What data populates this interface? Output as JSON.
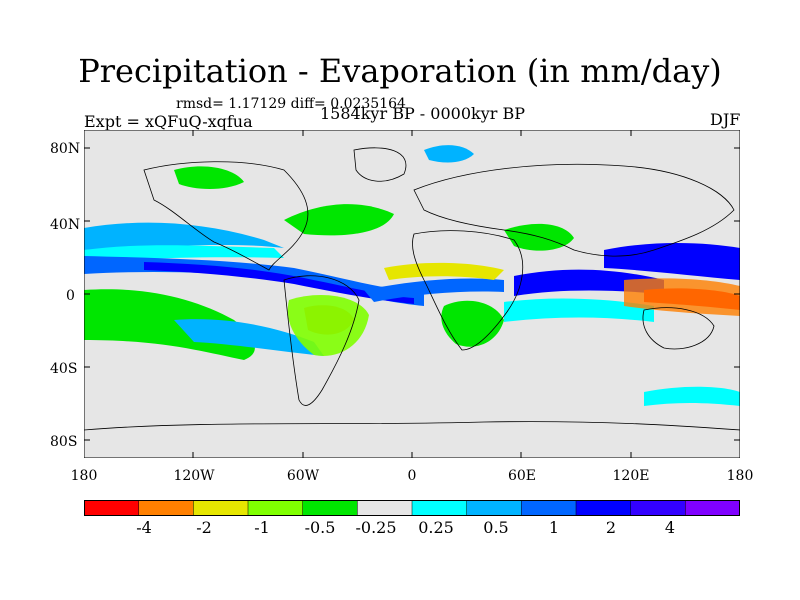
{
  "title": "Precipitation - Evaporation (in mm/day)",
  "stats": "rmsd= 1.17129 diff= 0.0235164",
  "experiment": "Expt = xQFuQ-xqfua",
  "period": "1584kyr BP - 0000kyr BP",
  "season": "DJF",
  "lat_labels": [
    "80N",
    "40N",
    "0",
    "40S",
    "80S"
  ],
  "lon_labels": [
    "180",
    "120W",
    "60W",
    "0",
    "60E",
    "120E",
    "180"
  ],
  "colorbar": {
    "colors": [
      "#ff0000",
      "#ff8000",
      "#e6e600",
      "#80ff00",
      "#00e600",
      "#e6e6e6",
      "#00ffff",
      "#00b3ff",
      "#0066ff",
      "#0000ff",
      "#3300ff",
      "#8000ff"
    ],
    "labels": [
      "-4",
      "-2",
      "-1",
      "-0.5",
      "-0.25",
      "0.25",
      "0.5",
      "1",
      "2",
      "4"
    ]
  },
  "map": {
    "background": "#e6e6e6",
    "x_range": [
      -180,
      180
    ],
    "y_range": [
      -90,
      90
    ]
  }
}
